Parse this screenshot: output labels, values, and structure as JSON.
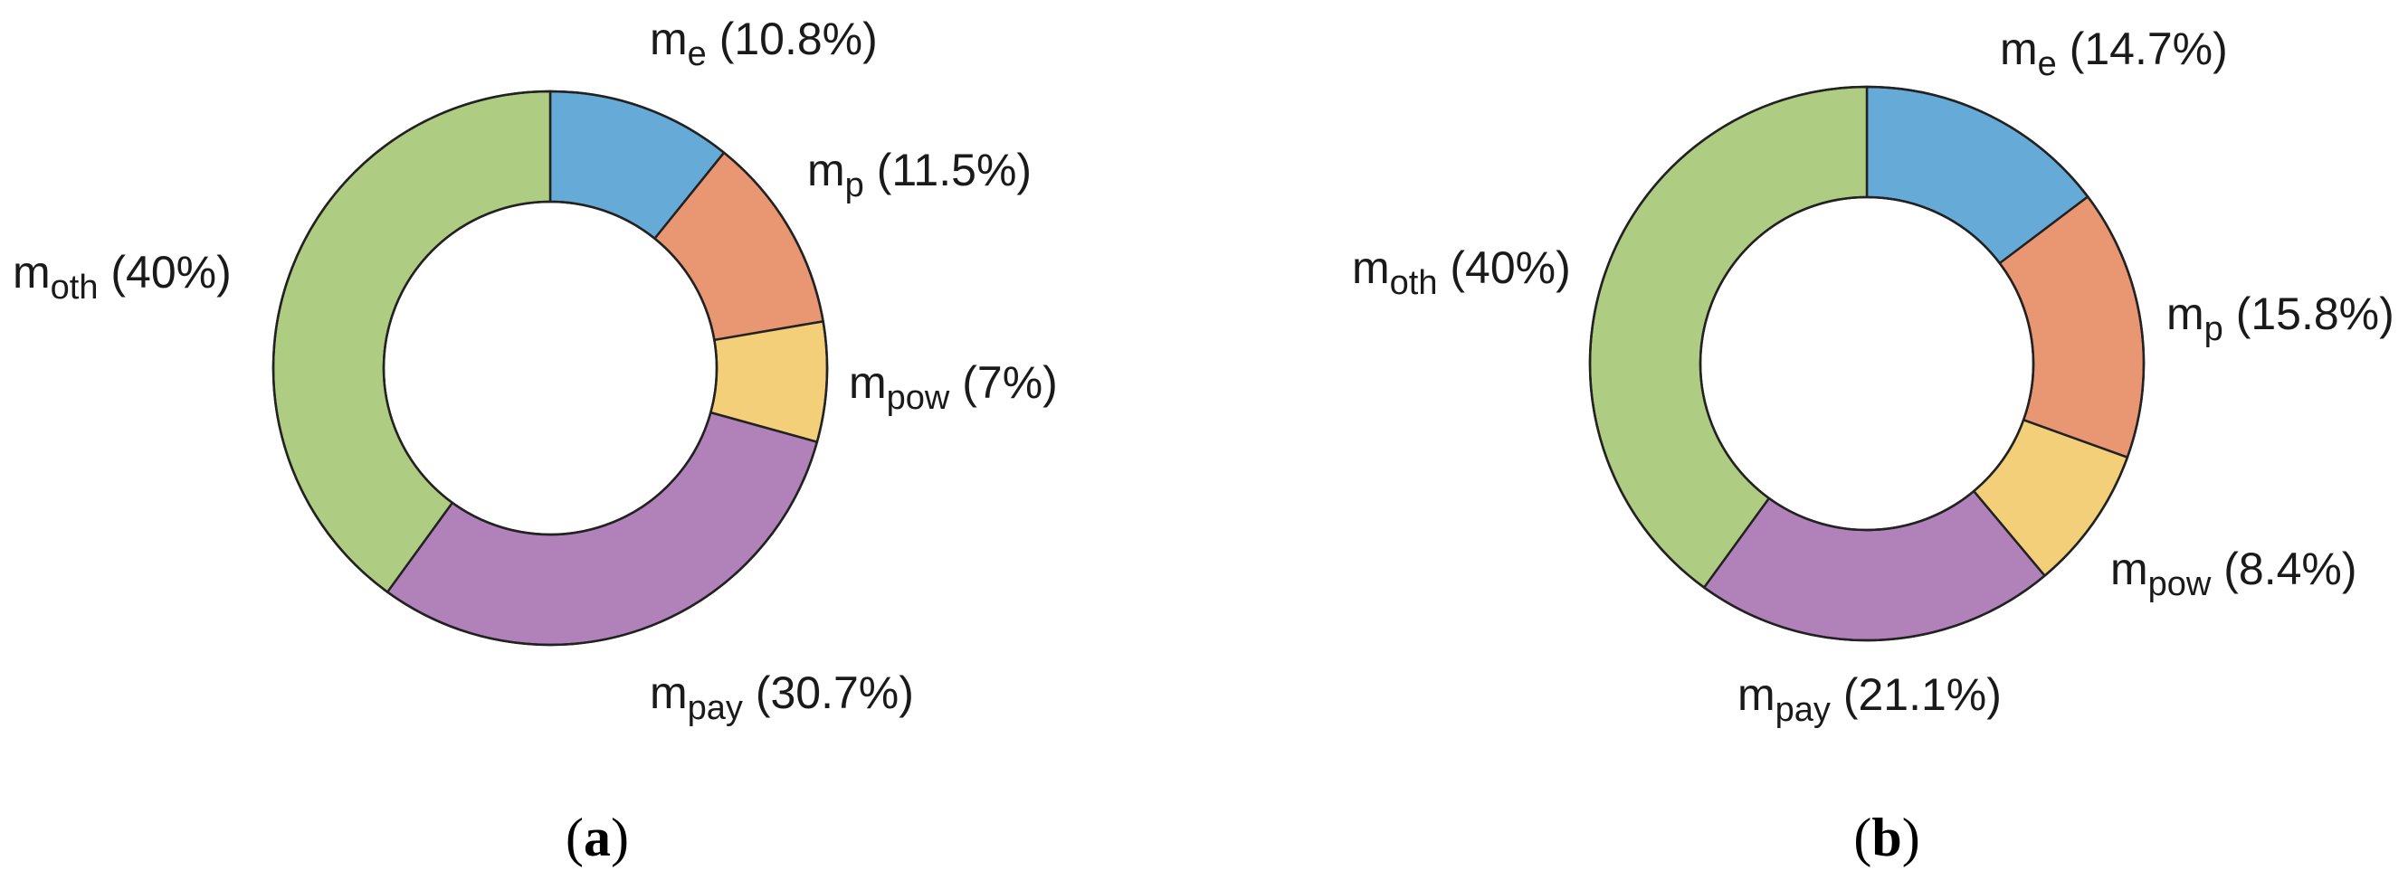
{
  "colors": {
    "m_e": "#66aad7",
    "m_p": "#e99673",
    "m_pow": "#f3cf79",
    "m_pay": "#b181b9",
    "m_oth": "#aecd83",
    "outline": "#222222",
    "hole": "#ffffff"
  },
  "chart_data": [
    {
      "type": "pie",
      "style": "donut",
      "start_angle": "12 o'clock",
      "direction": "clockwise",
      "panel": {
        "open": "(",
        "letter": "a",
        "close": ")"
      },
      "slices": [
        {
          "key": "m_e",
          "base": "m",
          "sub": "e",
          "pct_text": " (10.8%)",
          "value": 10.8
        },
        {
          "key": "m_p",
          "base": "m",
          "sub": "p",
          "pct_text": " (11.5%)",
          "value": 11.5
        },
        {
          "key": "m_pow",
          "base": "m",
          "sub": "pow",
          "pct_text": " (7%)",
          "value": 7.0
        },
        {
          "key": "m_pay",
          "base": "m",
          "sub": "pay",
          "pct_text": " (30.7%)",
          "value": 30.7
        },
        {
          "key": "m_oth",
          "base": "m",
          "sub": "oth",
          "pct_text": " (40%)",
          "value": 40.0
        }
      ]
    },
    {
      "type": "pie",
      "style": "donut",
      "start_angle": "12 o'clock",
      "direction": "clockwise",
      "panel": {
        "open": "(",
        "letter": "b",
        "close": ")"
      },
      "slices": [
        {
          "key": "m_e",
          "base": "m",
          "sub": "e",
          "pct_text": " (14.7%)",
          "value": 14.7
        },
        {
          "key": "m_p",
          "base": "m",
          "sub": "p",
          "pct_text": " (15.8%)",
          "value": 15.8
        },
        {
          "key": "m_pow",
          "base": "m",
          "sub": "pow",
          "pct_text": " (8.4%)",
          "value": 8.4
        },
        {
          "key": "m_pay",
          "base": "m",
          "sub": "pay",
          "pct_text": " (21.1%)",
          "value": 21.1
        },
        {
          "key": "m_oth",
          "base": "m",
          "sub": "oth",
          "pct_text": " (40%)",
          "value": 40.0
        }
      ]
    }
  ]
}
